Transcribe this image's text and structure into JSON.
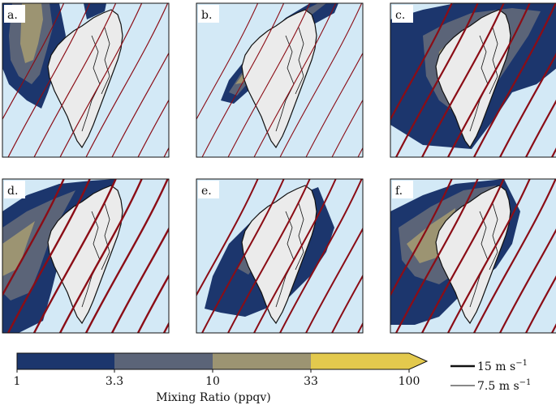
{
  "figure": {
    "panels": [
      {
        "label": "a.",
        "pattern": "a"
      },
      {
        "label": "b.",
        "pattern": "b"
      },
      {
        "label": "c.",
        "pattern": "c"
      },
      {
        "label": "d.",
        "pattern": "d"
      },
      {
        "label": "e.",
        "pattern": "e"
      },
      {
        "label": "f.",
        "pattern": "f"
      }
    ],
    "colors": {
      "sea": "#d3e9f6",
      "land": "#ebebeb",
      "coast": "#111111",
      "streamline": "#8b0d16",
      "bin_1": "#1c366d",
      "bin_2": "#5b6478",
      "bin_3": "#9c9472",
      "bin_4": "#e3c94d"
    }
  },
  "colorbar": {
    "title": "Mixing Ratio (ppqv)",
    "ticks": [
      "1",
      "3.3",
      "10",
      "33",
      "100"
    ],
    "extend": "max"
  },
  "legend": {
    "items": [
      {
        "label": "15 m s",
        "superscript": "−1",
        "weight": "thick"
      },
      {
        "label": "7.5 m s",
        "superscript": "−1",
        "weight": "thin"
      }
    ]
  }
}
